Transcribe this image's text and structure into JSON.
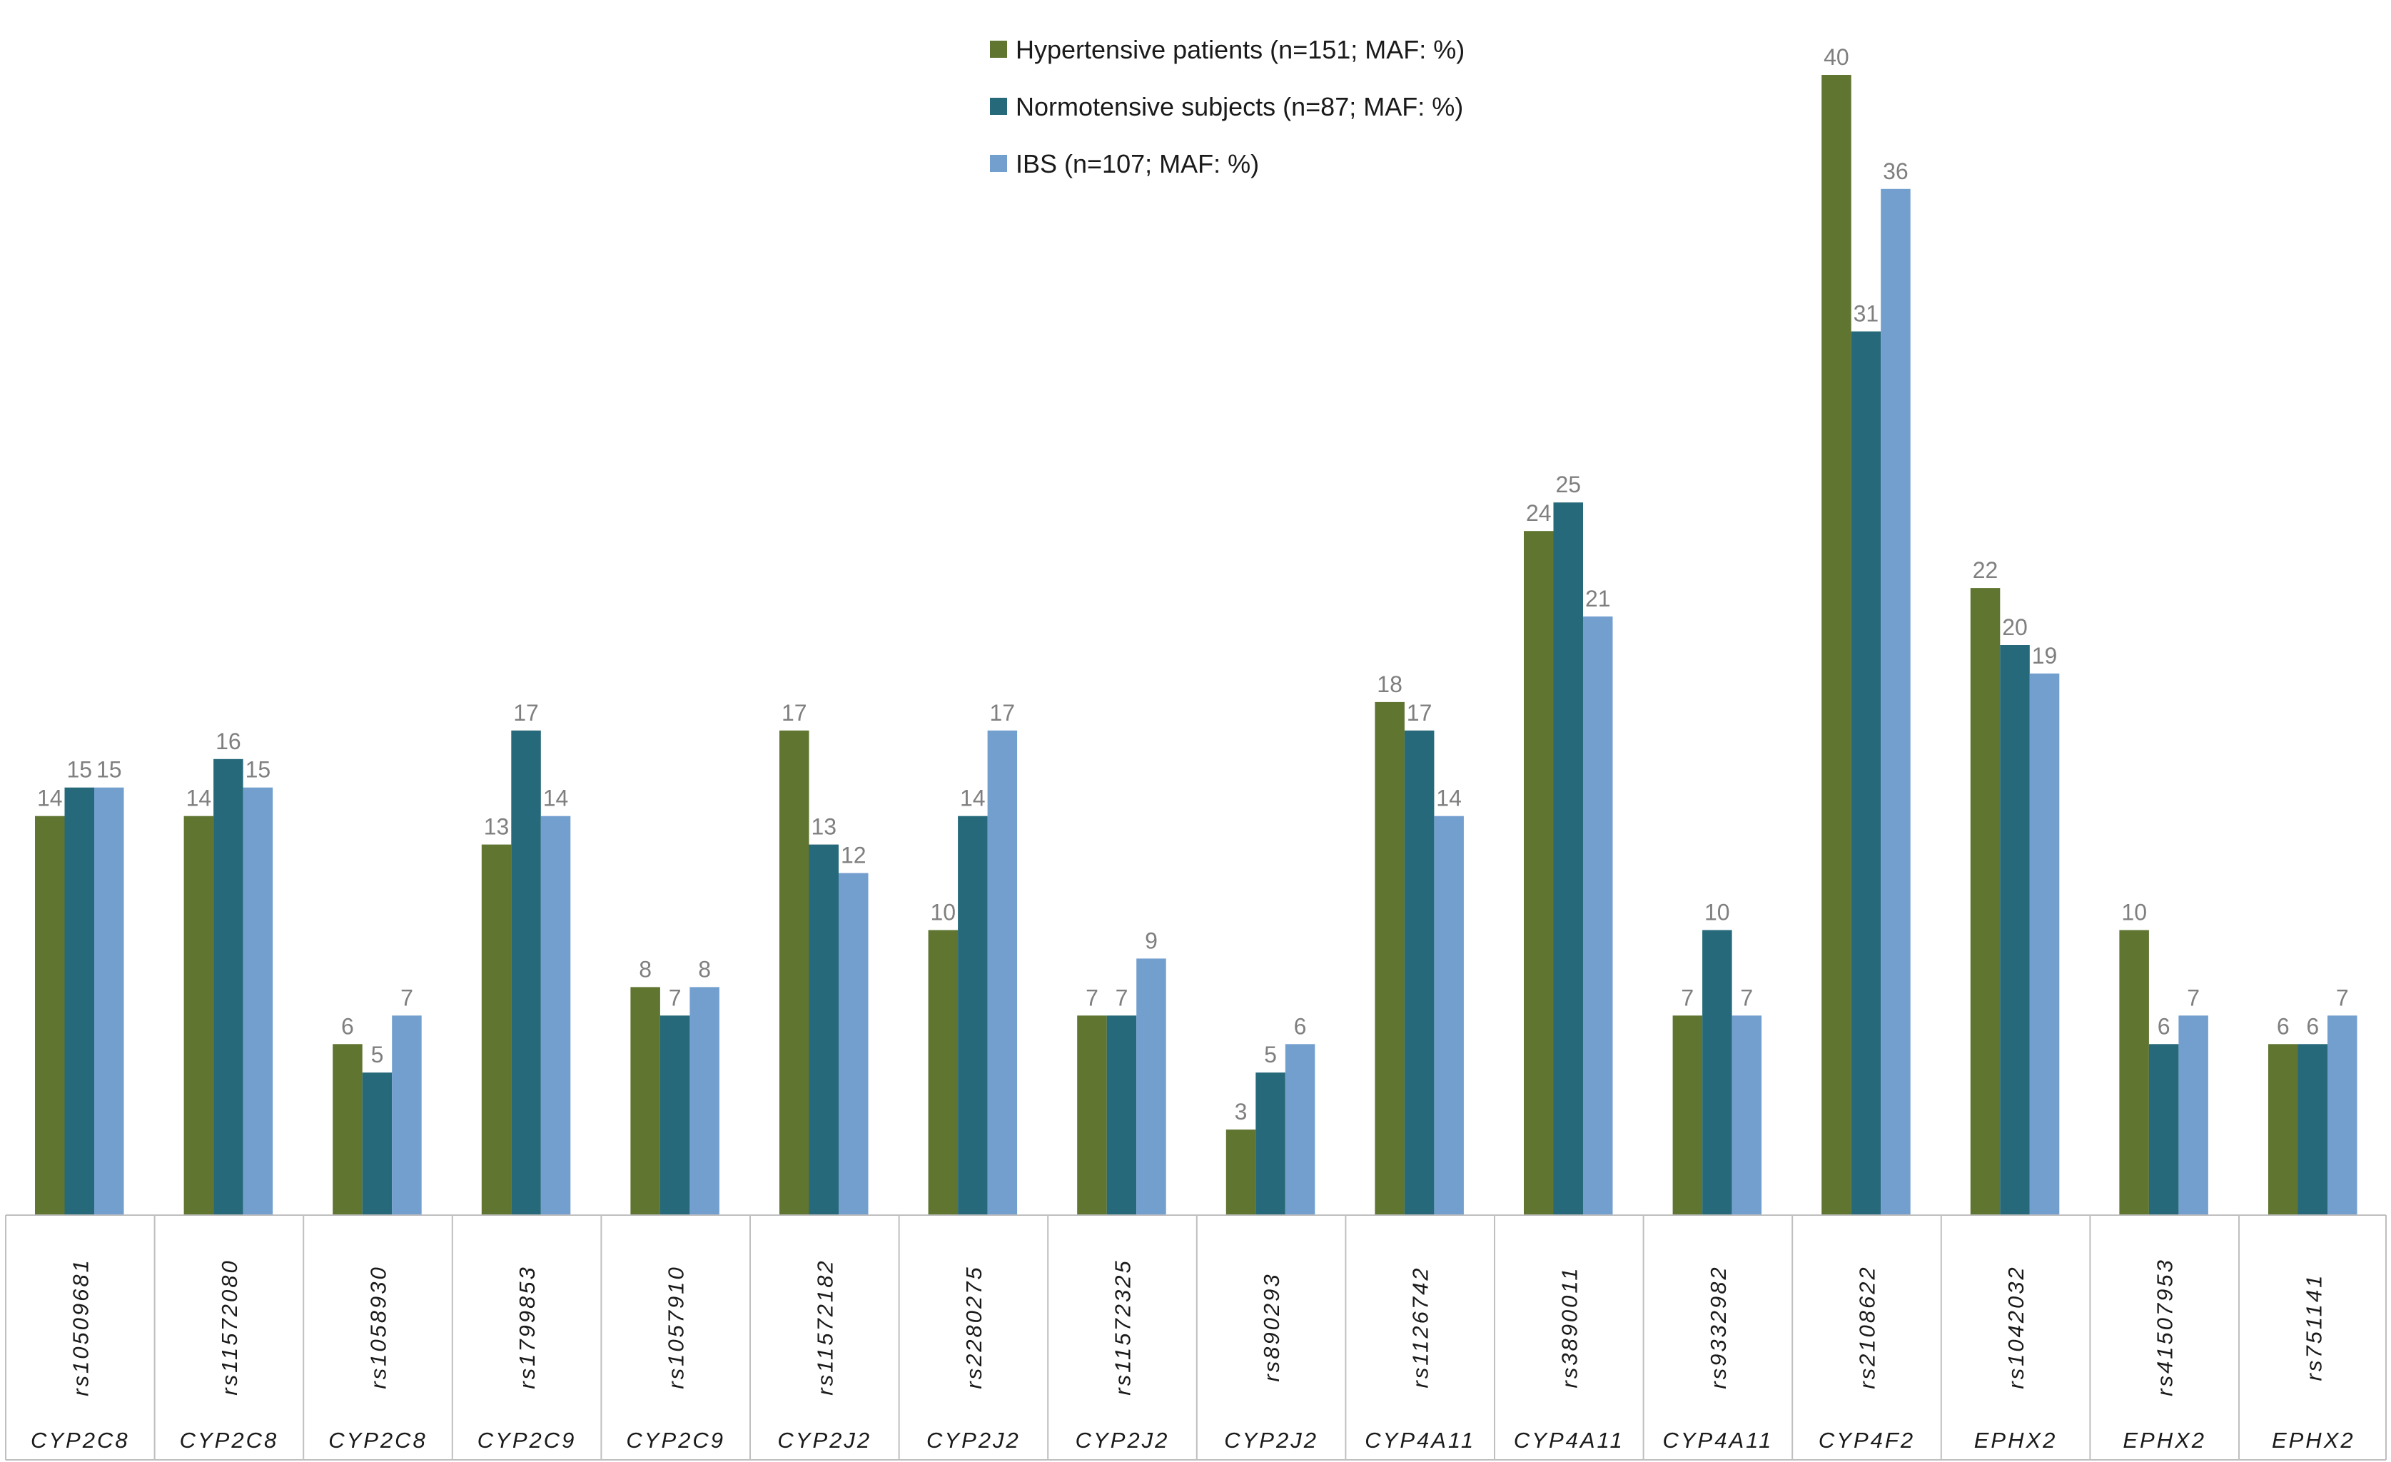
{
  "chart_data": {
    "type": "bar",
    "title": "",
    "xlabel": "",
    "ylabel": "",
    "ylim": [
      0,
      41
    ],
    "grid": false,
    "legend_position": "top-center",
    "categories": [
      {
        "snp": "rs10509681",
        "gene": "CYP2C8"
      },
      {
        "snp": "rs11572080",
        "gene": "CYP2C8"
      },
      {
        "snp": "rs1058930",
        "gene": "CYP2C8"
      },
      {
        "snp": "rs1799853",
        "gene": "CYP2C9"
      },
      {
        "snp": "rs1057910",
        "gene": "CYP2C9"
      },
      {
        "snp": "rs11572182",
        "gene": "CYP2J2"
      },
      {
        "snp": "rs2280275",
        "gene": "CYP2J2"
      },
      {
        "snp": "rs11572325",
        "gene": "CYP2J2"
      },
      {
        "snp": "rs890293",
        "gene": "CYP2J2"
      },
      {
        "snp": "rs1126742",
        "gene": "CYP4A11"
      },
      {
        "snp": "rs3890011",
        "gene": "CYP4A11"
      },
      {
        "snp": "rs9332982",
        "gene": "CYP4A11"
      },
      {
        "snp": "rs2108622",
        "gene": "CYP4F2"
      },
      {
        "snp": "rs1042032",
        "gene": "EPHX2"
      },
      {
        "snp": "rs41507953",
        "gene": "EPHX2"
      },
      {
        "snp": "rs751141",
        "gene": "EPHX2"
      }
    ],
    "series": [
      {
        "name": "Hypertensive patients (n=151; MAF: %)",
        "color": "#5f7530",
        "values": [
          14,
          14,
          6,
          13,
          8,
          17,
          10,
          7,
          3,
          18,
          24,
          7,
          40,
          22,
          10,
          6
        ]
      },
      {
        "name": "Normotensive subjects  (n=87; MAF: %)",
        "color": "#26697a",
        "values": [
          15,
          16,
          5,
          17,
          7,
          13,
          14,
          7,
          5,
          17,
          25,
          10,
          31,
          20,
          6,
          6
        ]
      },
      {
        "name": "IBS (n=107; MAF: %)",
        "color": "#739fcf",
        "values": [
          15,
          15,
          7,
          14,
          8,
          12,
          17,
          9,
          6,
          14,
          21,
          7,
          36,
          19,
          7,
          7
        ]
      }
    ]
  }
}
